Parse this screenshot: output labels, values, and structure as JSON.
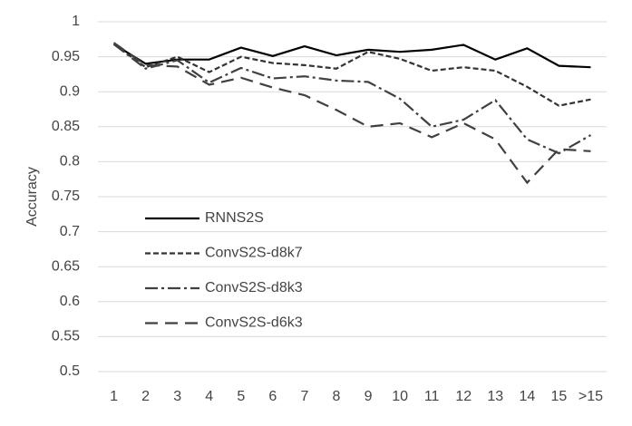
{
  "chart_data": {
    "type": "line",
    "y_label": "Accuracy",
    "categories": [
      "1",
      "2",
      "3",
      "4",
      "5",
      "6",
      "7",
      "8",
      "9",
      "10",
      "11",
      "12",
      "13",
      "14",
      "15",
      ">15"
    ],
    "series": [
      {
        "name": "RNNS2S",
        "color": "#000000",
        "values": [
          0.968,
          0.94,
          0.946,
          0.946,
          0.963,
          0.951,
          0.965,
          0.952,
          0.96,
          0.957,
          0.96,
          0.967,
          0.946,
          0.962,
          0.937,
          0.935
        ]
      },
      {
        "name": "ConvS2S-d8k7",
        "color": "#333333",
        "values": [
          0.968,
          0.935,
          0.95,
          0.928,
          0.95,
          0.941,
          0.938,
          0.933,
          0.957,
          0.947,
          0.93,
          0.935,
          0.93,
          0.907,
          0.88,
          0.889
        ]
      },
      {
        "name": "ConvS2S-d8k3",
        "color": "#404040",
        "values": [
          0.968,
          0.933,
          0.945,
          0.913,
          0.934,
          0.919,
          0.922,
          0.916,
          0.914,
          0.89,
          0.85,
          0.86,
          0.888,
          0.832,
          0.812,
          0.838
        ]
      },
      {
        "name": "ConvS2S-d6k3",
        "color": "#404040",
        "values": [
          0.97,
          0.938,
          0.936,
          0.91,
          0.92,
          0.906,
          0.895,
          0.874,
          0.85,
          0.855,
          0.835,
          0.855,
          0.832,
          0.77,
          0.818,
          0.815
        ]
      }
    ],
    "ylim": [
      0.5,
      1
    ],
    "yticks": [
      0.5,
      0.55,
      0.6,
      0.65,
      0.7,
      0.75,
      0.8,
      0.85,
      0.9,
      0.95,
      1
    ],
    "grid": true
  }
}
